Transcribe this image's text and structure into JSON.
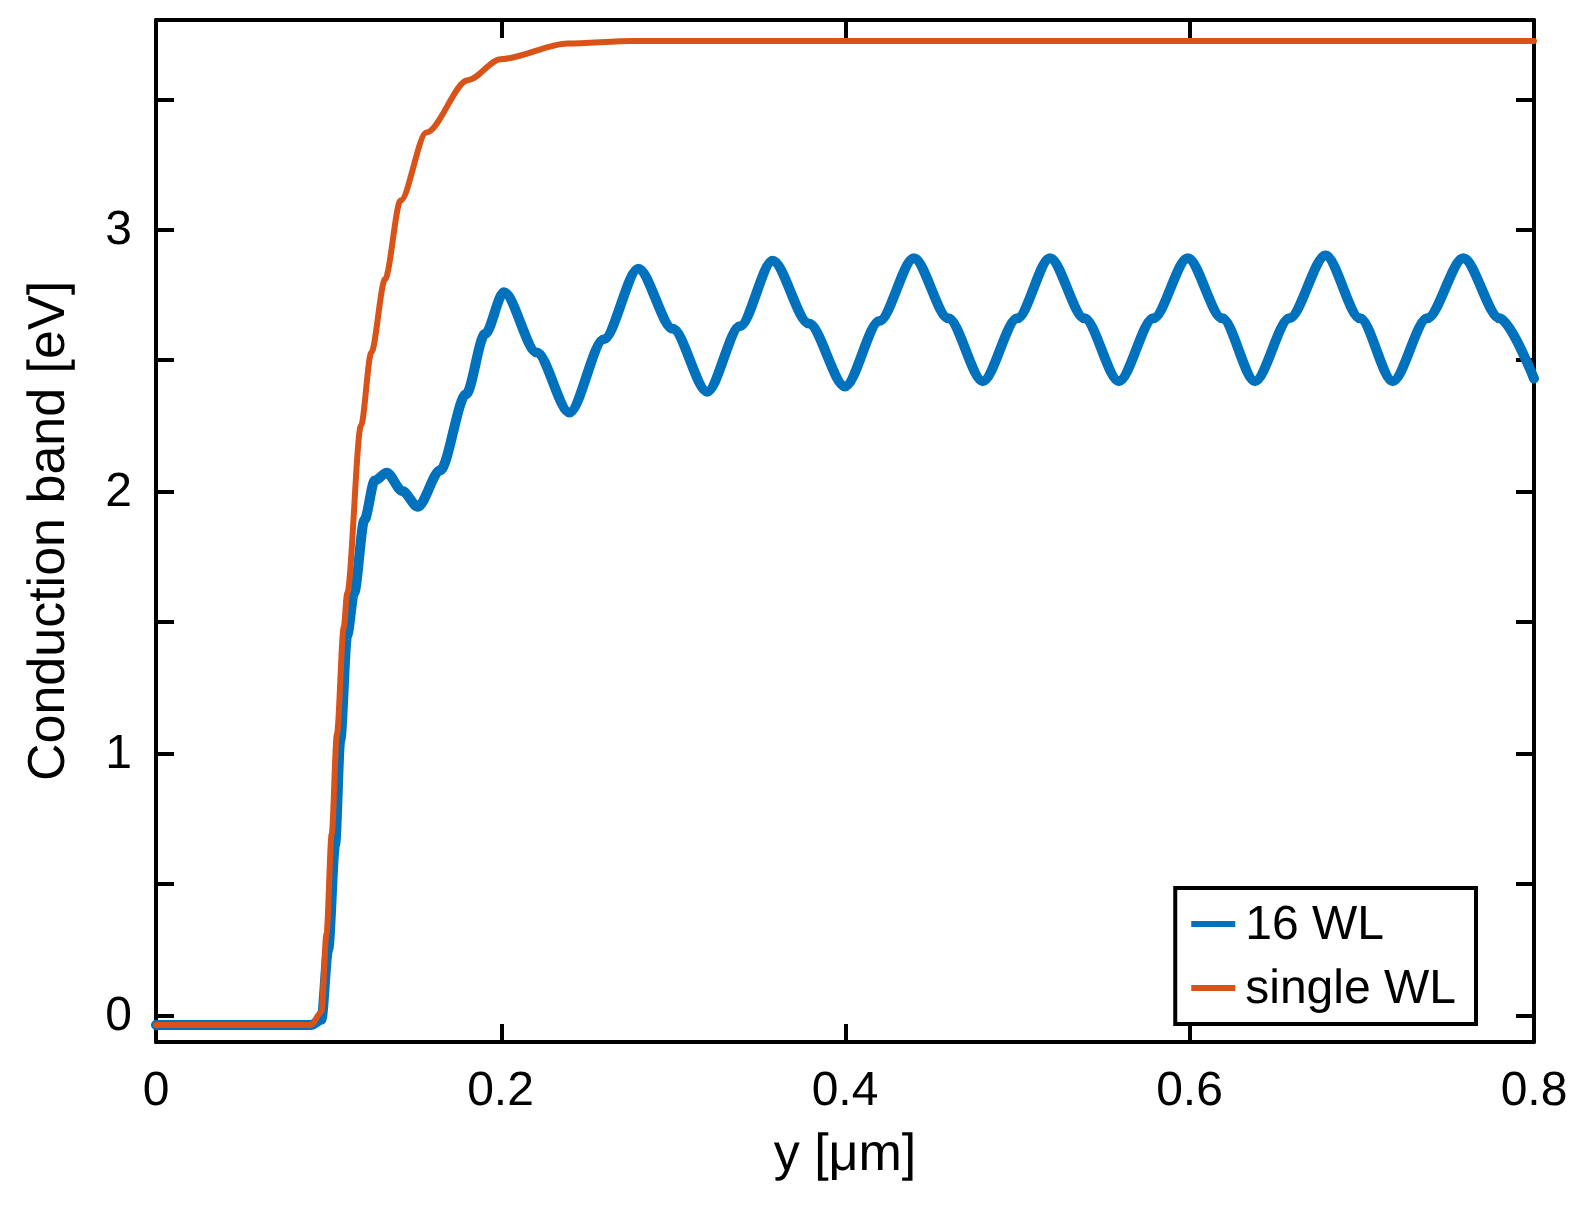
{
  "chart_data": {
    "type": "line",
    "xlabel": "y [μm]",
    "ylabel": "Conduction band [eV]",
    "xlim": [
      0,
      0.8
    ],
    "xticks": [
      0,
      0.2,
      0.4,
      0.6,
      0.8
    ],
    "ylim": [
      -0.105,
      3.8
    ],
    "yticks": [
      0,
      {
        "value": 0.5,
        "label": null
      },
      1,
      {
        "value": 1.5,
        "label": null
      },
      2,
      {
        "value": 2.5,
        "label": null
      },
      3,
      {
        "value": 3.5,
        "label": null
      }
    ],
    "grid": false,
    "legend": "bottom right",
    "marker": "none",
    "line_style": "solid",
    "series": [
      {
        "name": "16 WL",
        "color": "#0072bd",
        "x": [
          0,
          0.09,
          0.096,
          0.1,
          0.104,
          0.107,
          0.111,
          0.115,
          0.121,
          0.127,
          0.134,
          0.143,
          0.152,
          0.165,
          0.18,
          0.191,
          0.202,
          0.221,
          0.24,
          0.26,
          0.28,
          0.3,
          0.32,
          0.339,
          0.358,
          0.379,
          0.4,
          0.42,
          0.44,
          0.46,
          0.48,
          0.5,
          0.519,
          0.539,
          0.559,
          0.579,
          0.599,
          0.619,
          0.638,
          0.658,
          0.679,
          0.699,
          0.718,
          0.738,
          0.759,
          0.78,
          0.8
        ],
        "values": [
          -0.04,
          -0.04,
          -0.02,
          0.25,
          0.65,
          1.05,
          1.45,
          1.61,
          1.89,
          2.04,
          2.07,
          2.0,
          1.94,
          2.08,
          2.37,
          2.6,
          2.76,
          2.53,
          2.3,
          2.58,
          2.85,
          2.62,
          2.38,
          2.63,
          2.88,
          2.64,
          2.4,
          2.65,
          2.89,
          2.66,
          2.42,
          2.66,
          2.89,
          2.66,
          2.42,
          2.66,
          2.89,
          2.66,
          2.42,
          2.66,
          2.9,
          2.66,
          2.42,
          2.66,
          2.89,
          2.66,
          2.43
        ]
      },
      {
        "name": "single WL",
        "color": "#d95319",
        "x": [
          0,
          0.09,
          0.096,
          0.099,
          0.102,
          0.105,
          0.109,
          0.111,
          0.119,
          0.125,
          0.133,
          0.142,
          0.157,
          0.181,
          0.2,
          0.239,
          0.277,
          0.4,
          0.6,
          0.8
        ],
        "values": [
          -0.04,
          -0.04,
          0.01,
          0.31,
          0.69,
          1.07,
          1.48,
          1.61,
          2.25,
          2.53,
          2.81,
          3.11,
          3.37,
          3.57,
          3.65,
          3.71,
          3.72,
          3.72,
          3.72,
          3.72
        ]
      }
    ]
  }
}
